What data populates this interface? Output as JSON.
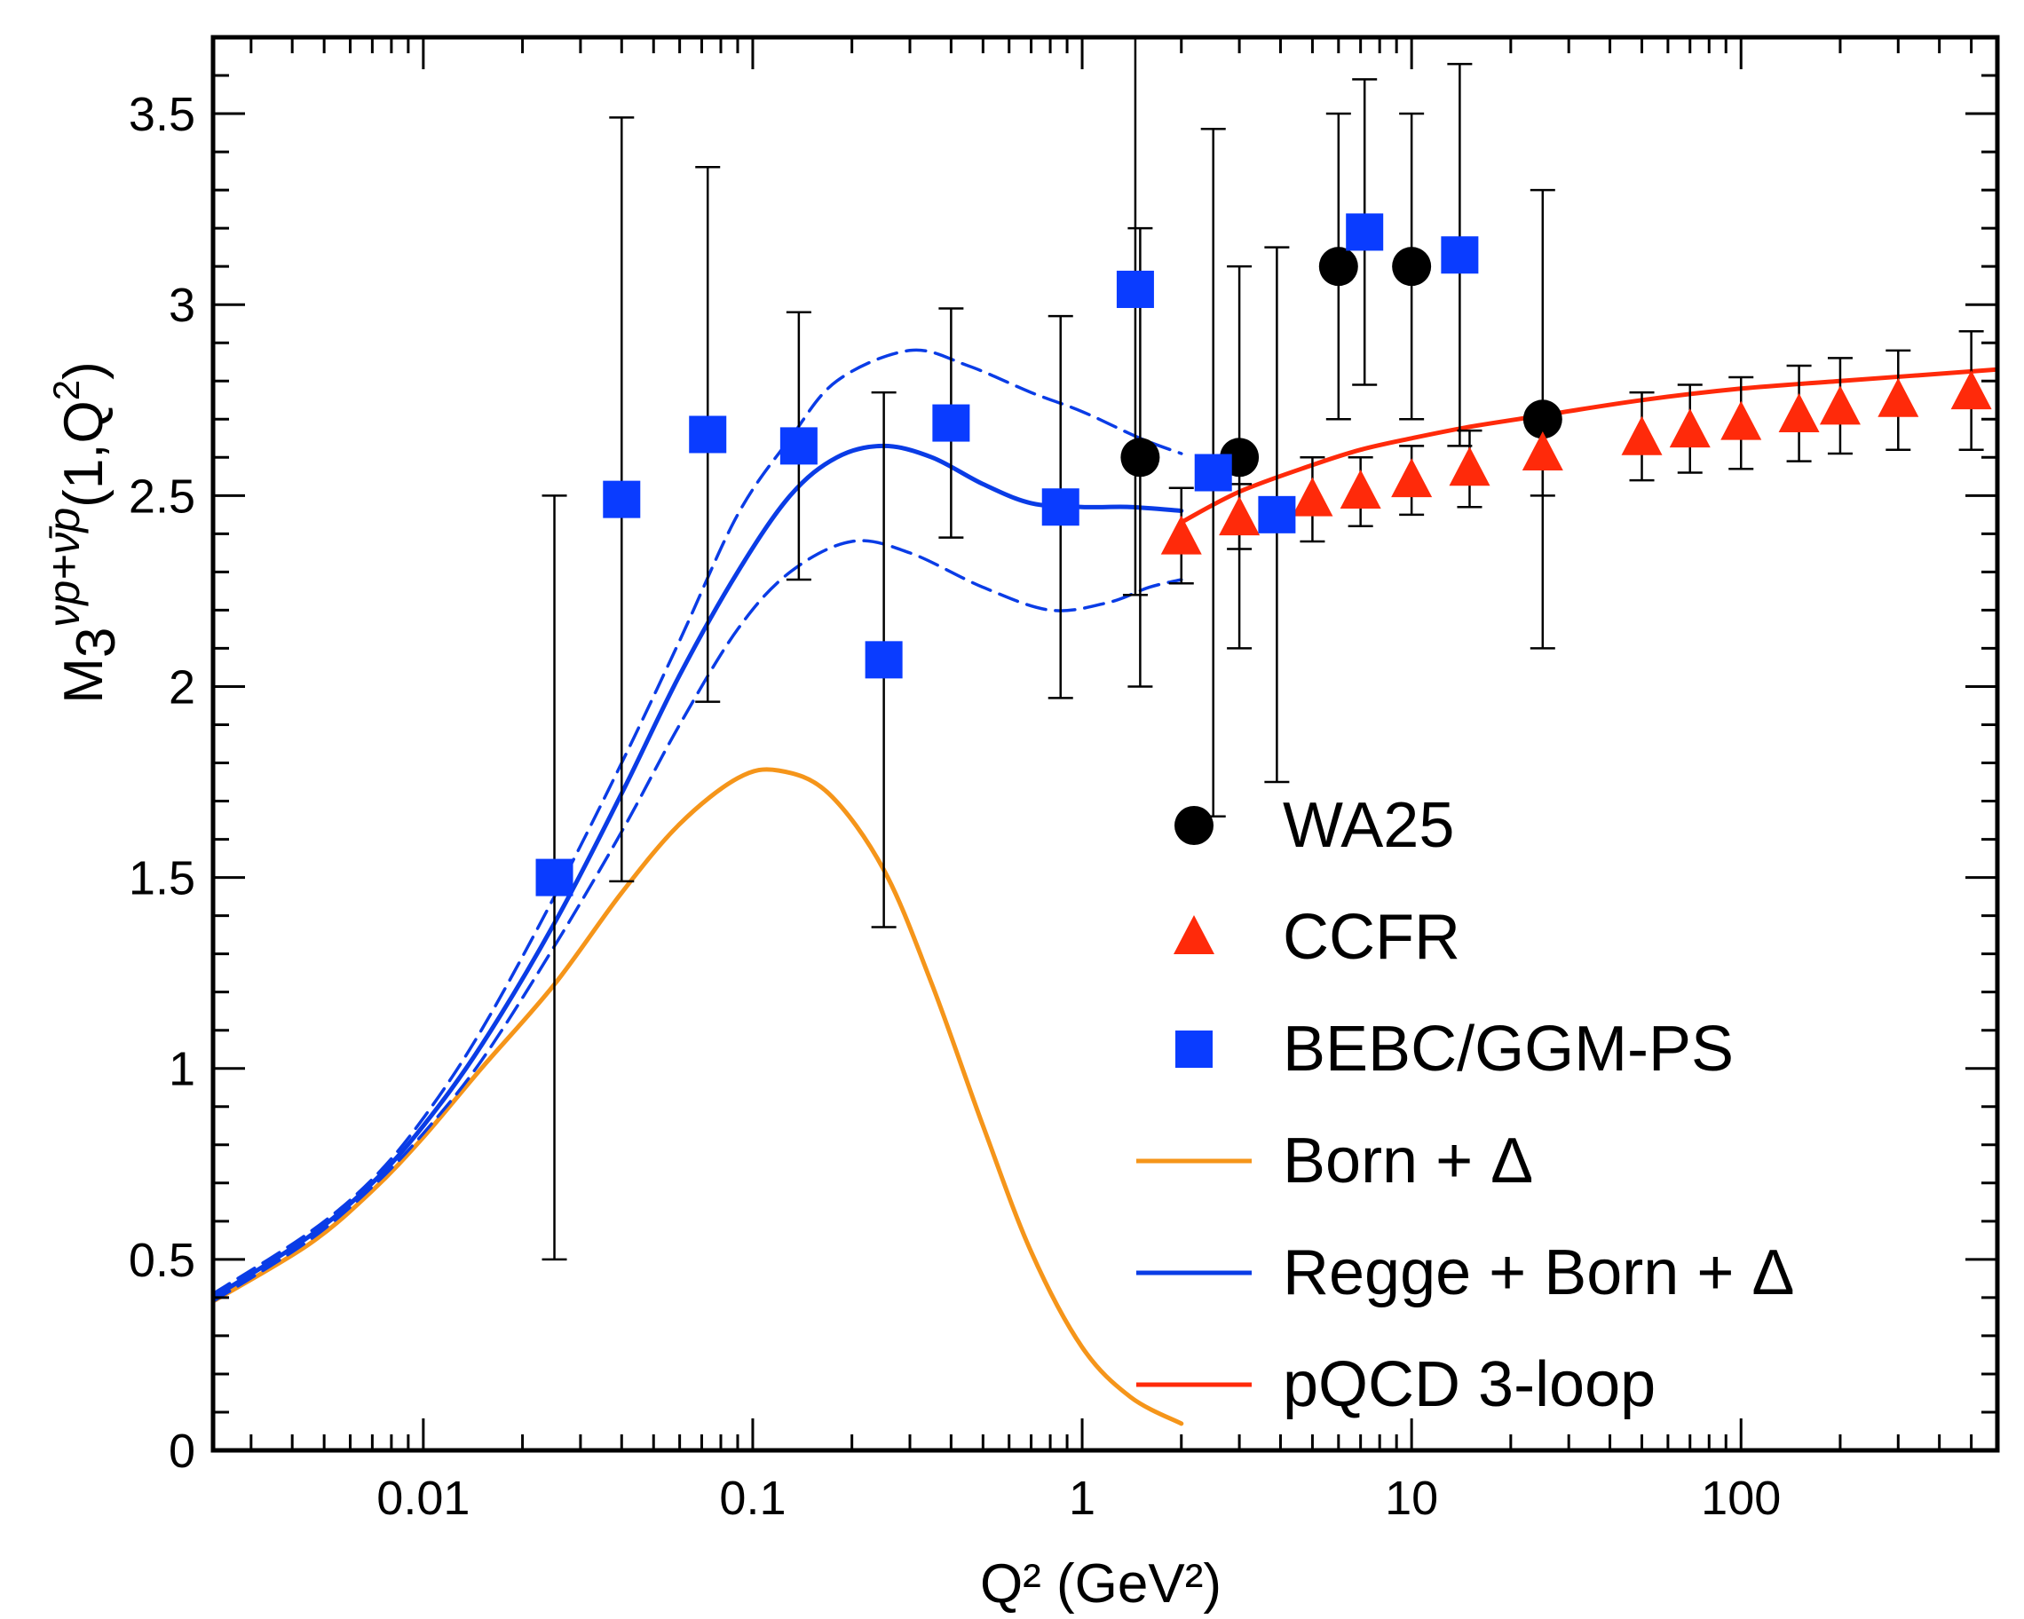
{
  "chart_data": {
    "type": "scatter",
    "title": "",
    "xlabel": "Q² (GeV²)",
    "ylabel_main": "M",
    "ylabel_sub": "3",
    "ylabel_sup": "νp+ν̄p",
    "ylabel_args": "(1,Q",
    "ylabel_args_sup": "2",
    "ylabel_args_close": ")",
    "xscale": "log",
    "xlim": [
      0.0023,
      600
    ],
    "ylim": [
      0,
      3.7
    ],
    "x_ticks": [
      {
        "value": 0.01,
        "label": "0.01"
      },
      {
        "value": 0.1,
        "label": "0.1"
      },
      {
        "value": 1,
        "label": "1"
      },
      {
        "value": 10,
        "label": "10"
      },
      {
        "value": 100,
        "label": "100"
      }
    ],
    "y_ticks": [
      {
        "value": 0,
        "label": "0"
      },
      {
        "value": 0.5,
        "label": "0.5"
      },
      {
        "value": 1,
        "label": "1"
      },
      {
        "value": 1.5,
        "label": "1.5"
      },
      {
        "value": 2,
        "label": "2"
      },
      {
        "value": 2.5,
        "label": "2.5"
      },
      {
        "value": 3,
        "label": "3"
      },
      {
        "value": 3.5,
        "label": "3.5"
      }
    ],
    "legend_position": "bottom-right",
    "series": [
      {
        "name": "WA25",
        "kind": "points",
        "marker": "circle",
        "color": "#000000",
        "points": [
          {
            "x": 1.5,
            "y": 2.6,
            "lo": 2.0,
            "hi": 3.2
          },
          {
            "x": 3.0,
            "y": 2.6,
            "lo": 2.1,
            "hi": 3.1
          },
          {
            "x": 6.0,
            "y": 3.1,
            "lo": 2.7,
            "hi": 3.5
          },
          {
            "x": 10.0,
            "y": 3.1,
            "lo": 2.7,
            "hi": 3.5
          },
          {
            "x": 25.0,
            "y": 2.7,
            "lo": 2.1,
            "hi": 3.3
          }
        ]
      },
      {
        "name": "CCFR",
        "kind": "points",
        "marker": "triangle",
        "color": "#ff2a0a",
        "points": [
          {
            "x": 2.0,
            "y": 2.39,
            "lo": 2.27,
            "hi": 2.52
          },
          {
            "x": 3.0,
            "y": 2.44,
            "lo": 2.36,
            "hi": 2.53
          },
          {
            "x": 5.0,
            "y": 2.49,
            "lo": 2.38,
            "hi": 2.6
          },
          {
            "x": 7.0,
            "y": 2.51,
            "lo": 2.42,
            "hi": 2.6
          },
          {
            "x": 10.0,
            "y": 2.54,
            "lo": 2.45,
            "hi": 2.63
          },
          {
            "x": 15.0,
            "y": 2.57,
            "lo": 2.47,
            "hi": 2.67
          },
          {
            "x": 25.0,
            "y": 2.61,
            "lo": 2.5,
            "hi": 2.71
          },
          {
            "x": 50.0,
            "y": 2.65,
            "lo": 2.54,
            "hi": 2.77
          },
          {
            "x": 70.0,
            "y": 2.67,
            "lo": 2.56,
            "hi": 2.79
          },
          {
            "x": 100.0,
            "y": 2.69,
            "lo": 2.57,
            "hi": 2.81
          },
          {
            "x": 150.0,
            "y": 2.71,
            "lo": 2.59,
            "hi": 2.84
          },
          {
            "x": 200.0,
            "y": 2.73,
            "lo": 2.61,
            "hi": 2.86
          },
          {
            "x": 300.0,
            "y": 2.75,
            "lo": 2.62,
            "hi": 2.88
          },
          {
            "x": 500.0,
            "y": 2.77,
            "lo": 2.62,
            "hi": 2.93
          }
        ]
      },
      {
        "name": "BEBC/GGM-PS",
        "kind": "points",
        "marker": "square",
        "color": "#0a3cff",
        "points": [
          {
            "x": 0.025,
            "y": 1.5,
            "lo": 0.5,
            "hi": 2.5
          },
          {
            "x": 0.04,
            "y": 2.49,
            "lo": 1.49,
            "hi": 3.49
          },
          {
            "x": 0.073,
            "y": 2.66,
            "lo": 1.96,
            "hi": 3.36
          },
          {
            "x": 0.138,
            "y": 2.63,
            "lo": 2.28,
            "hi": 2.98
          },
          {
            "x": 0.25,
            "y": 2.07,
            "lo": 1.37,
            "hi": 2.77
          },
          {
            "x": 0.4,
            "y": 2.69,
            "lo": 2.39,
            "hi": 2.99
          },
          {
            "x": 0.86,
            "y": 2.47,
            "lo": 1.97,
            "hi": 2.97
          },
          {
            "x": 1.45,
            "y": 3.04,
            "lo": 2.24,
            "hi": 3.84
          },
          {
            "x": 2.5,
            "y": 2.56,
            "lo": 1.66,
            "hi": 3.46
          },
          {
            "x": 3.9,
            "y": 2.45,
            "lo": 1.75,
            "hi": 3.15
          },
          {
            "x": 7.2,
            "y": 3.19,
            "lo": 2.79,
            "hi": 3.59
          },
          {
            "x": 14.0,
            "y": 3.13,
            "lo": 2.63,
            "hi": 3.63
          }
        ]
      },
      {
        "name": "Born + Δ",
        "kind": "line",
        "color": "#f5951a",
        "points": [
          [
            0.0023,
            0.39
          ],
          [
            0.0045,
            0.54
          ],
          [
            0.007,
            0.68
          ],
          [
            0.01,
            0.82
          ],
          [
            0.015,
            1.0
          ],
          [
            0.025,
            1.22
          ],
          [
            0.04,
            1.46
          ],
          [
            0.06,
            1.64
          ],
          [
            0.09,
            1.76
          ],
          [
            0.12,
            1.78
          ],
          [
            0.17,
            1.72
          ],
          [
            0.25,
            1.52
          ],
          [
            0.35,
            1.22
          ],
          [
            0.5,
            0.85
          ],
          [
            0.7,
            0.52
          ],
          [
            1.0,
            0.27
          ],
          [
            1.4,
            0.14
          ],
          [
            2.0,
            0.07
          ]
        ]
      },
      {
        "name": "Regge + Born + Δ",
        "kind": "line",
        "color": "#0a3ce6",
        "points": [
          [
            0.0023,
            0.4
          ],
          [
            0.0045,
            0.56
          ],
          [
            0.007,
            0.7
          ],
          [
            0.01,
            0.85
          ],
          [
            0.015,
            1.06
          ],
          [
            0.025,
            1.38
          ],
          [
            0.04,
            1.72
          ],
          [
            0.06,
            2.03
          ],
          [
            0.09,
            2.3
          ],
          [
            0.13,
            2.5
          ],
          [
            0.18,
            2.6
          ],
          [
            0.25,
            2.63
          ],
          [
            0.35,
            2.6
          ],
          [
            0.5,
            2.53
          ],
          [
            0.7,
            2.48
          ],
          [
            1.0,
            2.47
          ],
          [
            1.4,
            2.47
          ],
          [
            2.0,
            2.46
          ]
        ]
      },
      {
        "name": "Regge upper band",
        "kind": "band",
        "color": "#0a3ce6",
        "points": [
          [
            0.0023,
            0.41
          ],
          [
            0.0045,
            0.57
          ],
          [
            0.007,
            0.71
          ],
          [
            0.01,
            0.87
          ],
          [
            0.015,
            1.1
          ],
          [
            0.025,
            1.45
          ],
          [
            0.04,
            1.8
          ],
          [
            0.06,
            2.12
          ],
          [
            0.09,
            2.45
          ],
          [
            0.13,
            2.65
          ],
          [
            0.18,
            2.8
          ],
          [
            0.3,
            2.88
          ],
          [
            0.45,
            2.84
          ],
          [
            0.7,
            2.77
          ],
          [
            1.0,
            2.72
          ],
          [
            1.5,
            2.65
          ],
          [
            2.0,
            2.61
          ]
        ]
      },
      {
        "name": "Regge lower band",
        "kind": "band",
        "color": "#0a3ce6",
        "points": [
          [
            0.0023,
            0.39
          ],
          [
            0.0045,
            0.55
          ],
          [
            0.007,
            0.69
          ],
          [
            0.01,
            0.83
          ],
          [
            0.015,
            1.02
          ],
          [
            0.025,
            1.32
          ],
          [
            0.04,
            1.62
          ],
          [
            0.06,
            1.9
          ],
          [
            0.09,
            2.15
          ],
          [
            0.13,
            2.3
          ],
          [
            0.2,
            2.38
          ],
          [
            0.3,
            2.35
          ],
          [
            0.5,
            2.26
          ],
          [
            0.8,
            2.2
          ],
          [
            1.2,
            2.22
          ],
          [
            1.6,
            2.26
          ],
          [
            2.0,
            2.28
          ]
        ]
      },
      {
        "name": "pQCD 3-loop",
        "kind": "line",
        "color": "#ff2a0a",
        "points": [
          [
            2.0,
            2.43
          ],
          [
            3.0,
            2.51
          ],
          [
            5.0,
            2.58
          ],
          [
            7.0,
            2.62
          ],
          [
            10.0,
            2.65
          ],
          [
            15.0,
            2.68
          ],
          [
            25.0,
            2.71
          ],
          [
            50.0,
            2.75
          ],
          [
            100.0,
            2.78
          ],
          [
            200.0,
            2.8
          ],
          [
            600.0,
            2.83
          ]
        ]
      }
    ],
    "legend": [
      {
        "label": "WA25",
        "marker": "circle",
        "color": "#000000"
      },
      {
        "label": "CCFR",
        "marker": "triangle",
        "color": "#ff2a0a"
      },
      {
        "label": "BEBC/GGM-PS",
        "marker": "square",
        "color": "#0a3cff"
      },
      {
        "label": "Born + Δ",
        "marker": "line",
        "color": "#f5951a"
      },
      {
        "label": "Regge + Born + Δ",
        "marker": "line",
        "color": "#0a3ce6"
      },
      {
        "label": "pQCD 3-loop",
        "marker": "line",
        "color": "#ff2a0a"
      }
    ]
  }
}
